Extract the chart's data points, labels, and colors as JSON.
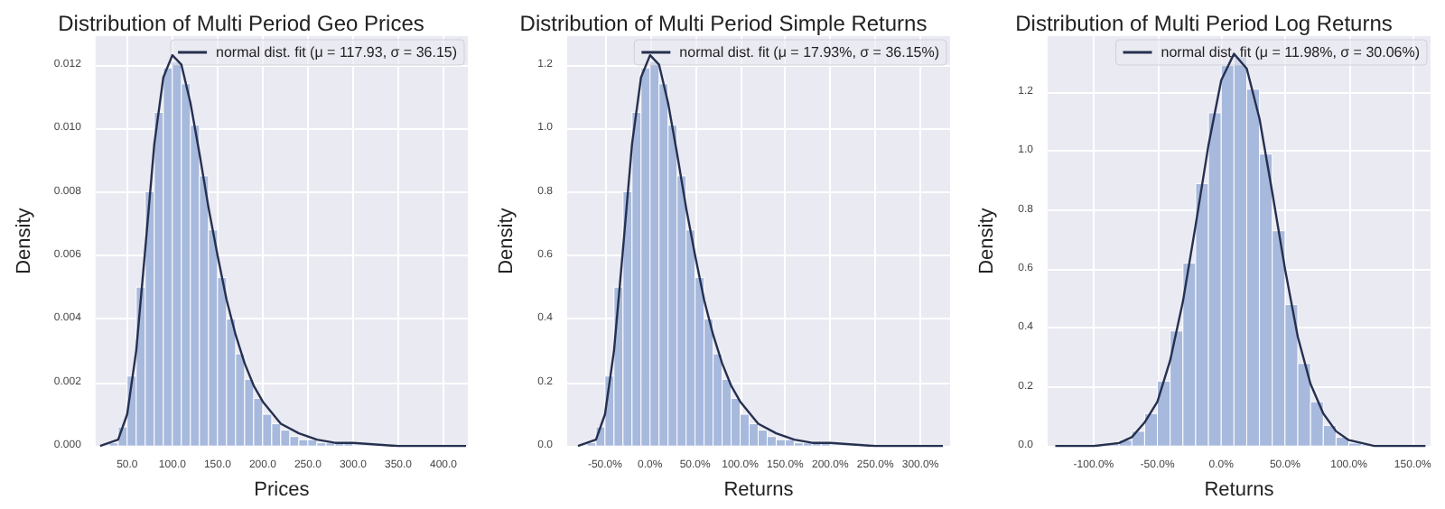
{
  "chart_data": [
    {
      "type": "histogram",
      "title": "Distribution of Multi Period Geo Prices",
      "xlabel": "Prices",
      "ylabel": "Density",
      "grid": true,
      "legend": "top right",
      "xlim": [
        15,
        427
      ],
      "ylim": [
        0,
        0.0129
      ],
      "xticks": [
        {
          "value": 50,
          "label": "50.0"
        },
        {
          "value": 100,
          "label": "100.0"
        },
        {
          "value": 150,
          "label": "150.0"
        },
        {
          "value": 200,
          "label": "200.0"
        },
        {
          "value": 250,
          "label": "250.0"
        },
        {
          "value": 300,
          "label": "300.0"
        },
        {
          "value": 350,
          "label": "350.0"
        },
        {
          "value": 400,
          "label": "400.0"
        }
      ],
      "yticks": [
        {
          "value": 0,
          "label": "0.000"
        },
        {
          "value": 0.002,
          "label": "0.002"
        },
        {
          "value": 0.004,
          "label": "0.004"
        },
        {
          "value": 0.006,
          "label": "0.006"
        },
        {
          "value": 0.008,
          "label": "0.008"
        },
        {
          "value": 0.01,
          "label": "0.010"
        },
        {
          "value": 0.012,
          "label": "0.012"
        }
      ],
      "series": [
        {
          "color": "#a7b9dc",
          "bins": [
            30,
            40,
            50,
            60,
            70,
            80,
            90,
            100,
            110,
            120,
            130,
            140,
            150,
            160,
            170,
            180,
            190,
            200,
            210,
            220,
            230,
            240,
            250,
            260,
            270,
            280,
            290,
            300
          ],
          "values": [
            0.0001,
            0.0006,
            0.0022,
            0.005,
            0.008,
            0.0105,
            0.0119,
            0.0121,
            0.0114,
            0.0101,
            0.0085,
            0.0068,
            0.0053,
            0.004,
            0.0029,
            0.0021,
            0.0015,
            0.001,
            0.0007,
            0.0005,
            0.0003,
            0.0002,
            0.0002,
            0.0001,
            0.0001,
            0.0001,
            0.0001
          ]
        },
        {
          "type": "line",
          "name": "normal dist. fit (μ = 117.93, σ = 36.15)",
          "color": "#26304f",
          "x": [
            20,
            40,
            50,
            60,
            70,
            80,
            90,
            100,
            110,
            120,
            130,
            140,
            150,
            160,
            170,
            180,
            190,
            200,
            220,
            240,
            260,
            280,
            300,
            350,
            425
          ],
          "values": [
            0,
            0.0002,
            0.001,
            0.003,
            0.0062,
            0.0095,
            0.0116,
            0.0123,
            0.012,
            0.0108,
            0.0092,
            0.0075,
            0.006,
            0.0046,
            0.0035,
            0.0026,
            0.0019,
            0.0014,
            0.0007,
            0.0004,
            0.0002,
            0.0001,
            0.0001,
            0,
            0
          ]
        }
      ]
    },
    {
      "type": "histogram",
      "title": "Distribution of Multi Period Simple Returns",
      "xlabel": "Returns",
      "ylabel": "Density",
      "grid": true,
      "legend": "top right",
      "xlim": [
        -92,
        333
      ],
      "ylim": [
        0,
        1.29
      ],
      "xticks": [
        {
          "value": -50,
          "label": "-50.0%"
        },
        {
          "value": 0,
          "label": "0.0%"
        },
        {
          "value": 50,
          "label": "50.0%"
        },
        {
          "value": 100,
          "label": "100.0%"
        },
        {
          "value": 150,
          "label": "150.0%"
        },
        {
          "value": 200,
          "label": "200.0%"
        },
        {
          "value": 250,
          "label": "250.0%"
        },
        {
          "value": 300,
          "label": "300.0%"
        }
      ],
      "yticks": [
        {
          "value": 0,
          "label": "0.0"
        },
        {
          "value": 0.2,
          "label": "0.2"
        },
        {
          "value": 0.4,
          "label": "0.4"
        },
        {
          "value": 0.6,
          "label": "0.6"
        },
        {
          "value": 0.8,
          "label": "0.8"
        },
        {
          "value": 1,
          "label": "1.0"
        },
        {
          "value": 1.2,
          "label": "1.2"
        }
      ],
      "series": [
        {
          "color": "#a7b9dc",
          "bins": [
            -70,
            -60,
            -50,
            -40,
            -30,
            -20,
            -10,
            0,
            10,
            20,
            30,
            40,
            50,
            60,
            70,
            80,
            90,
            100,
            110,
            120,
            130,
            140,
            150,
            160,
            170,
            180,
            190,
            200
          ],
          "values": [
            0.01,
            0.06,
            0.22,
            0.5,
            0.8,
            1.05,
            1.19,
            1.21,
            1.14,
            1.01,
            0.85,
            0.68,
            0.53,
            0.4,
            0.29,
            0.21,
            0.15,
            0.1,
            0.07,
            0.05,
            0.03,
            0.02,
            0.02,
            0.01,
            0.01,
            0.01,
            0.01
          ]
        },
        {
          "type": "line",
          "name": "normal dist. fit (μ = 17.93%, σ = 36.15%)",
          "color": "#26304f",
          "x": [
            -80,
            -60,
            -50,
            -40,
            -30,
            -20,
            -10,
            0,
            10,
            20,
            30,
            40,
            50,
            60,
            70,
            80,
            90,
            100,
            120,
            140,
            160,
            180,
            200,
            250,
            325
          ],
          "values": [
            0,
            0.02,
            0.1,
            0.3,
            0.62,
            0.95,
            1.16,
            1.23,
            1.2,
            1.08,
            0.92,
            0.75,
            0.6,
            0.46,
            0.35,
            0.26,
            0.19,
            0.14,
            0.07,
            0.04,
            0.02,
            0.01,
            0.01,
            0,
            0
          ]
        }
      ]
    },
    {
      "type": "histogram",
      "title": "Distribution of Multi Period Log Returns",
      "xlabel": "Returns",
      "ylabel": "Density",
      "grid": true,
      "legend": "top right",
      "xlim": [
        -136,
        164
      ],
      "ylim": [
        0,
        1.39
      ],
      "xticks": [
        {
          "value": -100,
          "label": "-100.0%"
        },
        {
          "value": -50,
          "label": "-50.0%"
        },
        {
          "value": 0,
          "label": "0.0%"
        },
        {
          "value": 50,
          "label": "50.0%"
        },
        {
          "value": 100,
          "label": "100.0%"
        },
        {
          "value": 150,
          "label": "150.0%"
        }
      ],
      "yticks": [
        {
          "value": 0,
          "label": "0.0"
        },
        {
          "value": 0.2,
          "label": "0.2"
        },
        {
          "value": 0.4,
          "label": "0.4"
        },
        {
          "value": 0.6,
          "label": "0.6"
        },
        {
          "value": 0.8,
          "label": "0.8"
        },
        {
          "value": 1,
          "label": "1.0"
        },
        {
          "value": 1.2,
          "label": "1.2"
        }
      ],
      "series": [
        {
          "color": "#a7b9dc",
          "bins": [
            -90,
            -80,
            -70,
            -60,
            -50,
            -40,
            -30,
            -20,
            -10,
            0,
            10,
            20,
            30,
            40,
            50,
            60,
            70,
            80,
            90,
            100,
            110,
            120,
            130
          ],
          "values": [
            0.01,
            0.02,
            0.05,
            0.11,
            0.22,
            0.39,
            0.62,
            0.89,
            1.13,
            1.29,
            1.32,
            1.21,
            0.99,
            0.73,
            0.48,
            0.28,
            0.15,
            0.07,
            0.03,
            0.01,
            0.005,
            0.002
          ]
        },
        {
          "type": "line",
          "name": "normal dist. fit (μ = 11.98%, σ = 30.06%)",
          "color": "#26304f",
          "x": [
            -130,
            -100,
            -80,
            -70,
            -60,
            -50,
            -40,
            -30,
            -20,
            -10,
            0,
            10,
            20,
            30,
            40,
            50,
            60,
            70,
            80,
            90,
            100,
            120,
            160
          ],
          "values": [
            0,
            0,
            0.01,
            0.03,
            0.08,
            0.15,
            0.29,
            0.49,
            0.75,
            1.02,
            1.24,
            1.33,
            1.28,
            1.11,
            0.86,
            0.6,
            0.37,
            0.21,
            0.11,
            0.05,
            0.02,
            0,
            0
          ]
        }
      ]
    }
  ]
}
